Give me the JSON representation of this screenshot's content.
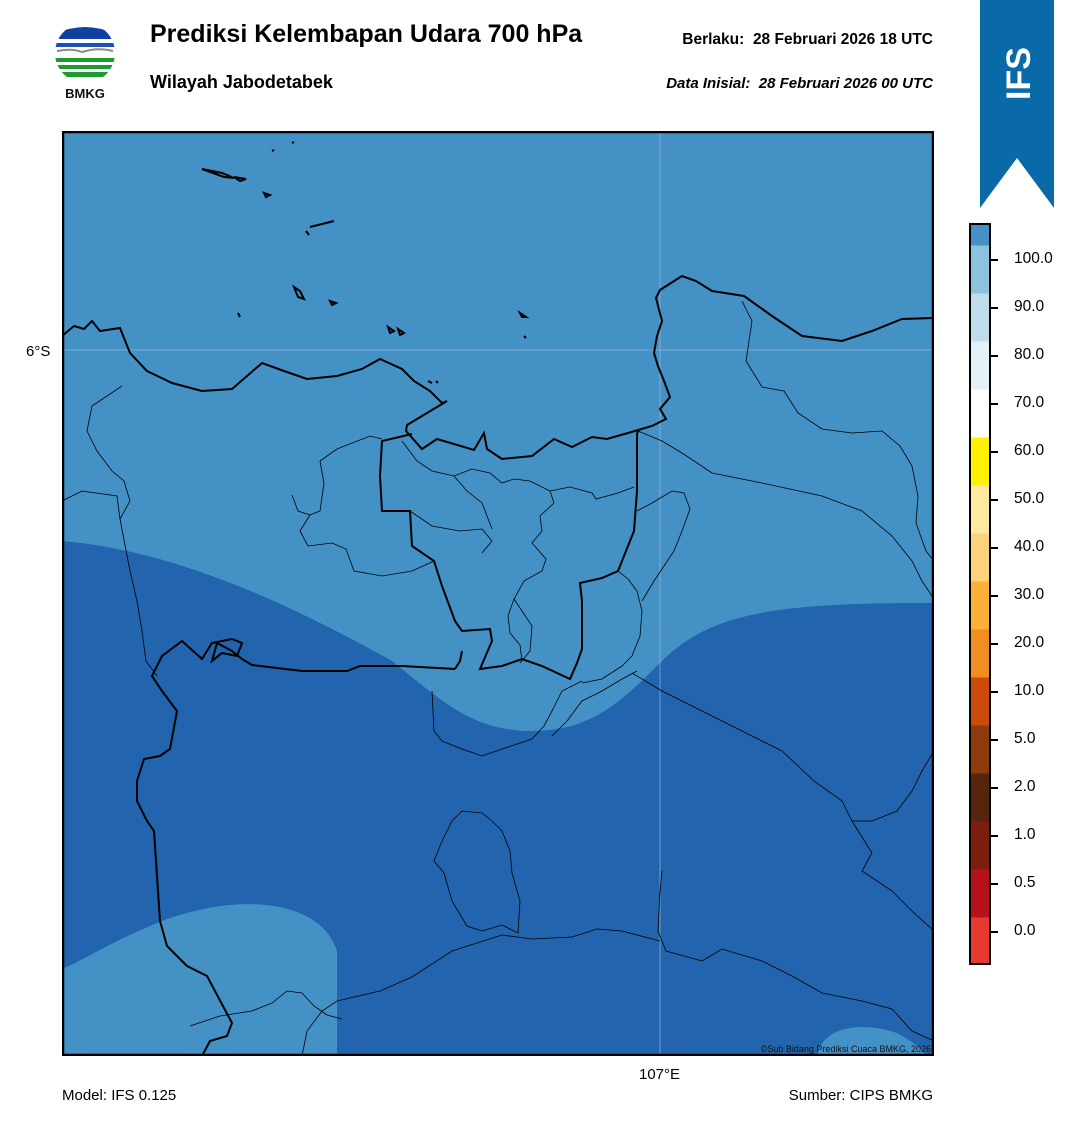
{
  "header": {
    "title": "Prediksi Kelembapan Udara 700 hPa",
    "subtitle": "Wilayah Jabodetabek",
    "valid_label": "Berlaku:",
    "valid_time": "28 Februari 2026 18 UTC",
    "init_label": "Data Inisial:",
    "init_time": "28 Februari 2026 00 UTC"
  },
  "logo": {
    "text": "BMKG"
  },
  "ribbon": {
    "text": "IFS",
    "color": "#0a6aa8"
  },
  "map": {
    "lat_label": "6°S",
    "lon_label": "107°E",
    "credit": "©Sub Bidang Prediksi Cuaca BMKG, 2026",
    "fill_colors": {
      "class_70_80": "#4491c5",
      "class_80_90": "#2264ae"
    }
  },
  "colorbar": {
    "labels": [
      "0.0",
      "0.5",
      "1.0",
      "2.0",
      "5.0",
      "10.0",
      "20.0",
      "30.0",
      "40.0",
      "50.0",
      "60.0",
      "70.0",
      "80.0",
      "90.0",
      "100.0"
    ],
    "colors": [
      "#e8392e",
      "#b5121b",
      "#7c1e0e",
      "#57250e",
      "#8e3a0d",
      "#cc4a0a",
      "#f28d22",
      "#fbb03a",
      "#fcd27a",
      "#ffe89f",
      "#fff200",
      "#ffffff",
      "#e5f1f8",
      "#bfdcea",
      "#8bc2de",
      "#4491c5",
      "#2264ae",
      "#0e3665",
      "#002050",
      "#32094f"
    ]
  },
  "footer": {
    "model": "Model: IFS 0.125",
    "source": "Sumber: CIPS BMKG"
  }
}
